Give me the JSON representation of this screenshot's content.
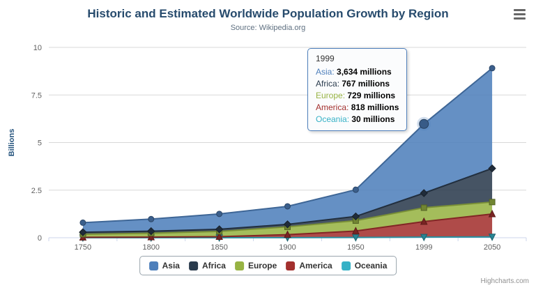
{
  "title": "Historic and Estimated Worldwide Population Growth by Region",
  "subtitle": "Source: Wikipedia.org",
  "credits": "Highcharts.com",
  "icons": {
    "menu": "hamburger-menu-icon"
  },
  "chart_data": {
    "type": "area",
    "stacking": "normal",
    "title": "Historic and Estimated Worldwide Population Growth by Region",
    "subtitle": "Source: Wikipedia.org",
    "xlabel": "",
    "ylabel": "Billions",
    "ylim": [
      0,
      10
    ],
    "yticks": [
      0,
      2.5,
      5,
      7.5,
      10
    ],
    "grid": true,
    "legend_position": "bottom",
    "categories": [
      "1750",
      "1800",
      "1850",
      "1900",
      "1950",
      "1999",
      "2050"
    ],
    "values_unit": "millions",
    "series": [
      {
        "name": "Asia",
        "color": "#4e7fbb",
        "marker": "circle",
        "values": [
          502,
          635,
          809,
          947,
          1402,
          3634,
          5268
        ]
      },
      {
        "name": "Africa",
        "color": "#2a3b4d",
        "marker": "diamond",
        "values": [
          106,
          107,
          111,
          133,
          221,
          767,
          1766
        ]
      },
      {
        "name": "Europe",
        "color": "#97b343",
        "marker": "square",
        "values": [
          163,
          203,
          276,
          408,
          547,
          729,
          628
        ]
      },
      {
        "name": "America",
        "color": "#a3302e",
        "marker": "triangle",
        "values": [
          18,
          31,
          54,
          156,
          339,
          818,
          1201
        ]
      },
      {
        "name": "Oceania",
        "color": "#36b1c6",
        "marker": "triangle-down",
        "values": [
          2,
          2,
          2,
          6,
          13,
          30,
          46
        ]
      }
    ],
    "stack_order_bottom_to_top": [
      "Oceania",
      "America",
      "Europe",
      "Africa",
      "Asia"
    ],
    "hover": {
      "series": "Asia",
      "category_index": 5
    }
  },
  "tooltip": {
    "header": "1999",
    "rows": [
      {
        "name": "Asia",
        "value": "3,634 millions"
      },
      {
        "name": "Africa",
        "value": "767 millions"
      },
      {
        "name": "Europe",
        "value": "729 millions"
      },
      {
        "name": "America",
        "value": "818 millions"
      },
      {
        "name": "Oceania",
        "value": "30 millions"
      }
    ]
  }
}
